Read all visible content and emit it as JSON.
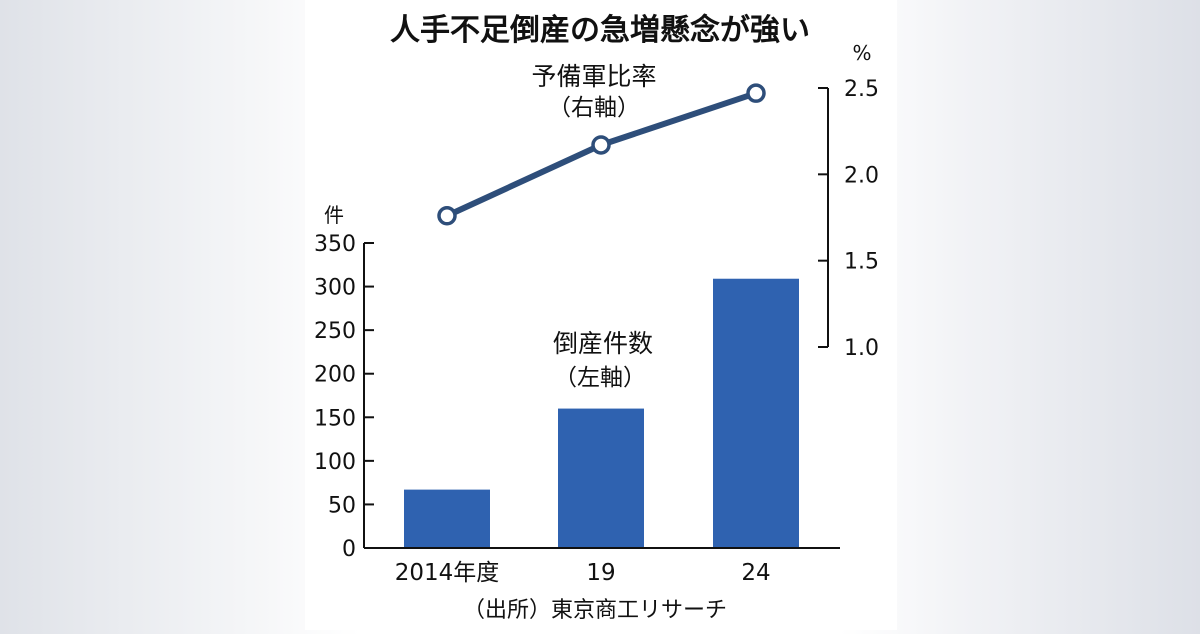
{
  "chart_data": {
    "type": "bar+line",
    "title": "人手不足倒産の急増懸念が強い",
    "categories": [
      "2014年度",
      "19",
      "24"
    ],
    "bar_series": {
      "label": "倒産件数",
      "axis_label": "（左軸）",
      "unit": "件",
      "values": [
        67,
        160,
        309
      ],
      "ylim": [
        0,
        350
      ],
      "yticks": [
        "0",
        "50",
        "100",
        "150",
        "200",
        "250",
        "300",
        "350"
      ],
      "color": "#2f62b0"
    },
    "line_series": {
      "label": "予備軍比率",
      "axis_label": "（右軸）",
      "unit": "%",
      "values": [
        1.76,
        2.17,
        2.47
      ],
      "ylim": [
        1.0,
        2.5
      ],
      "yticks": [
        "1.0",
        "1.5",
        "2.0",
        "2.5"
      ],
      "color": "#2e4e7a"
    },
    "source": "（出所）東京商工リサーチ"
  }
}
